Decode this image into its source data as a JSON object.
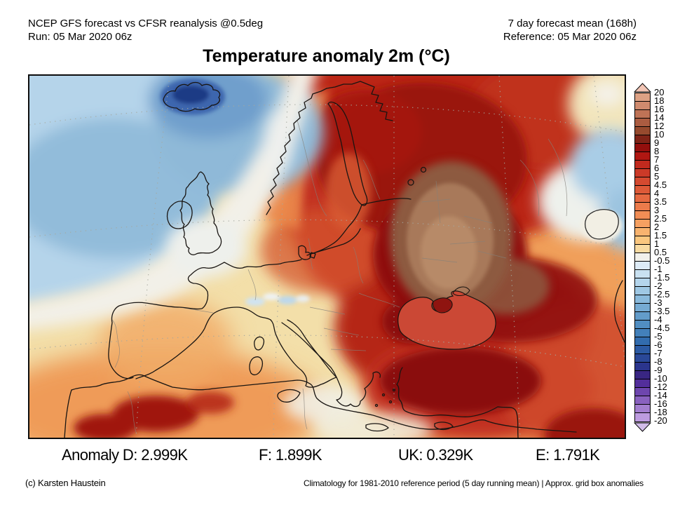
{
  "header": {
    "left_line1": "NCEP GFS forecast vs CFSR reanalysis @0.5deg",
    "left_line2": "Run: 05 Mar 2020 06z",
    "right_line1": "7 day forecast mean (168h)",
    "right_line2": "Reference: 05 Mar 2020 06z"
  },
  "title": "Temperature anomaly 2m (°C)",
  "anomaly": {
    "d": "Anomaly D: 2.999K",
    "f": "F: 1.899K",
    "uk": "UK: 0.329K",
    "e": "E: 1.791K"
  },
  "footer": {
    "credit": "(c) Karsten Haustein",
    "note": "Climatology for 1981-2010 reference period (5 day running mean) | Approx. grid box anomalies"
  },
  "colorbar": {
    "unit": "°C",
    "labels": [
      "20",
      "18",
      "16",
      "14",
      "12",
      "10",
      "9",
      "8",
      "7",
      "6",
      "5",
      "4.5",
      "4",
      "3.5",
      "3",
      "2.5",
      "2",
      "1.5",
      "1",
      "0.5",
      "-0.5",
      "-1",
      "-1.5",
      "-2",
      "-2.5",
      "-3",
      "-3.5",
      "-4",
      "-4.5",
      "-5",
      "-6",
      "-7",
      "-8",
      "-9",
      "-10",
      "-12",
      "-14",
      "-16",
      "-18",
      "-20"
    ],
    "cell_colors": [
      "#dda184",
      "#cf8a6e",
      "#bf7356",
      "#ab5c41",
      "#964a2e",
      "#7f2317",
      "#930f0d",
      "#b01712",
      "#c12a1e",
      "#cb3a28",
      "#d44a30",
      "#dd5a38",
      "#e56941",
      "#ec7b4b",
      "#f18d55",
      "#f5a061",
      "#f8b36f",
      "#fac77f",
      "#f8dba2",
      "#f1f0ea",
      "#ddebf6",
      "#c9e1f1",
      "#b4d5ec",
      "#9fc8e4",
      "#8abadc",
      "#76abd3",
      "#639cca",
      "#518ec2",
      "#4380ba",
      "#326cae",
      "#2c5aa3",
      "#2a4898",
      "#2b358d",
      "#392683",
      "#532e9b",
      "#6e46ae",
      "#8961bf",
      "#a37ecf",
      "#bd9bdf"
    ],
    "arrow_top_color": "#f2c5b5",
    "arrow_bottom_color": "#d2bce9"
  },
  "map_colors": {
    "base_land": "#f3dfa9",
    "warm_orange": "#ef9b55",
    "hot_red": "#b52818",
    "extreme_brown": "#a8795a",
    "cold_blue": "#92bcda",
    "iceland_core": "#1e3a85",
    "neutral_white": "#f2f0e8"
  }
}
